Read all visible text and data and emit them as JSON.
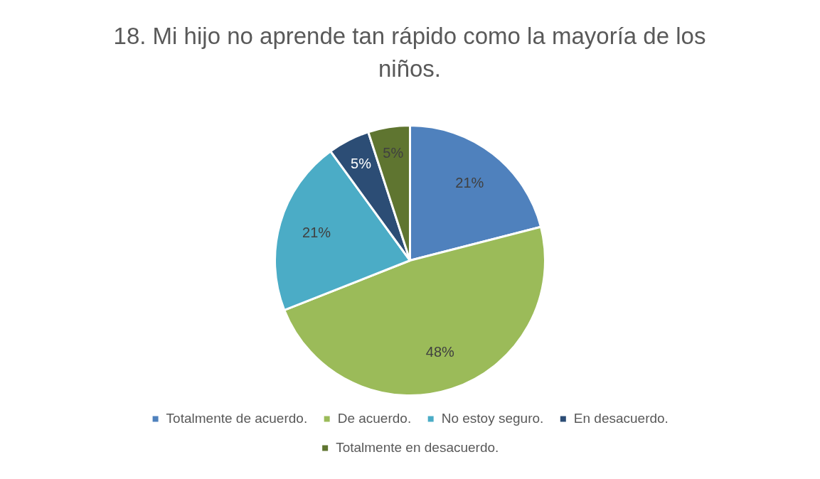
{
  "chart_data": {
    "type": "pie",
    "title": "18. Mi hijo no aprende tan rápido como la mayoría de los niños.",
    "categories": [
      "Totalmente de acuerdo.",
      "De acuerdo.",
      "No estoy seguro.",
      "En desacuerdo.",
      "Totalmente en desacuerdo."
    ],
    "values": [
      21,
      48,
      21,
      5,
      5
    ],
    "colors": [
      "#4f81bd",
      "#9bbb59",
      "#4bacc6",
      "#2c4d75",
      "#5f7530"
    ],
    "value_labels": [
      "21%",
      "48%",
      "21%",
      "5%",
      "5%"
    ],
    "legend": "bottom"
  }
}
